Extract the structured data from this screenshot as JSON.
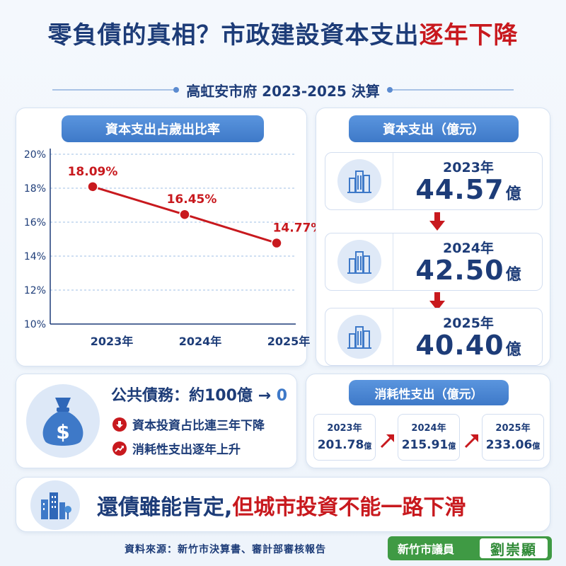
{
  "header": {
    "title_main": "零負債的真相？市政建設資本支出",
    "title_highlight": "逐年下降",
    "subtitle": "高虹安市府 2023-2025 決算"
  },
  "chart_data": {
    "type": "line",
    "title": "資本支出占歲出比率",
    "categories": [
      "2023年",
      "2024年",
      "2025年"
    ],
    "values": [
      18.09,
      16.45,
      14.77
    ],
    "value_labels": [
      "18.09%",
      "16.45%",
      "14.77%"
    ],
    "y_ticks": [
      "10%",
      "12%",
      "14%",
      "16%",
      "18%",
      "20%"
    ],
    "ylim": [
      10,
      20
    ],
    "grid": true,
    "line_color": "#c8191e"
  },
  "capex": {
    "title": "資本支出（億元）",
    "items": [
      {
        "year": "2023年",
        "value": "44.57",
        "unit": "億"
      },
      {
        "year": "2024年",
        "value": "42.50",
        "unit": "億"
      },
      {
        "year": "2025年",
        "value": "40.40",
        "unit": "億"
      }
    ]
  },
  "debt": {
    "title_prefix": "公共債務：約100億 → ",
    "title_zero": "0",
    "line1": "資本投資占比連三年下降",
    "line2": "消耗性支出逐年上升",
    "icon": "money-bag-icon"
  },
  "consumption": {
    "title": "消耗性支出（億元）",
    "items": [
      {
        "year": "2023年",
        "value": "201.78",
        "unit": "億"
      },
      {
        "year": "2024年",
        "value": "215.91",
        "unit": "億"
      },
      {
        "year": "2025年",
        "value": "233.06",
        "unit": "億"
      }
    ]
  },
  "banner": {
    "part1": "還債雖能肯定,",
    "part2": "但城市投資不能一路下滑"
  },
  "footer": {
    "source": "資料來源：新竹市決算書、審計部審核報告",
    "role": "新竹市議員",
    "name": "劉崇顯"
  },
  "colors": {
    "navy": "#1d3c78",
    "red": "#c8191e",
    "blue": "#3e79c8",
    "green": "#3f9a44"
  }
}
